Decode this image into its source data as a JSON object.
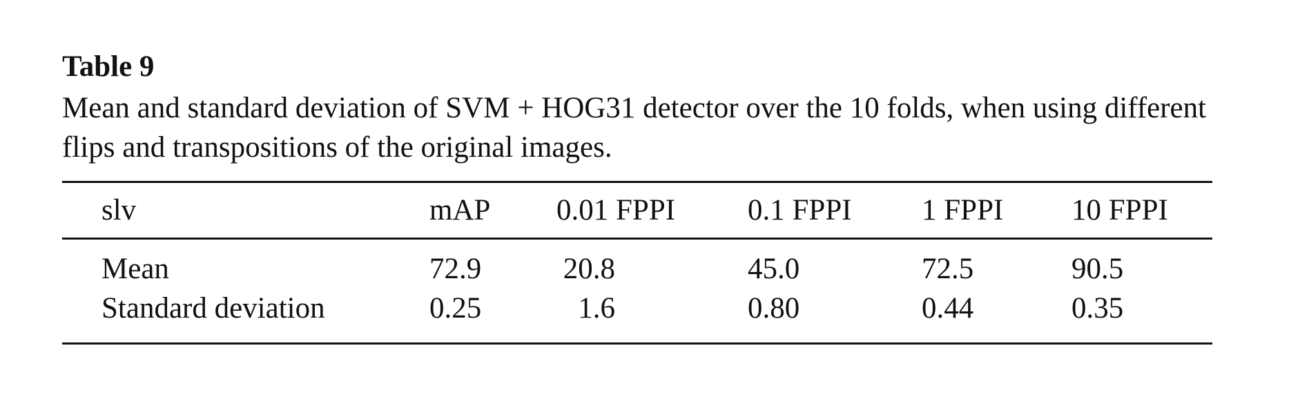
{
  "title": "Table 9",
  "caption": "Mean and standard deviation of SVM + HOG31 detector over the 10 folds, when using different flips and transpositions of the original images.",
  "table": {
    "header": [
      "slv",
      "mAP",
      "0.01 FPPI",
      "0.1 FPPI",
      "1 FPPI",
      "10 FPPI"
    ],
    "rows": [
      [
        "Mean",
        "72.9",
        "20.8",
        "45.0",
        "72.5",
        "90.5"
      ],
      [
        "Standard deviation",
        "0.25",
        "1.6",
        "0.80",
        "0.44",
        "0.35"
      ]
    ]
  }
}
